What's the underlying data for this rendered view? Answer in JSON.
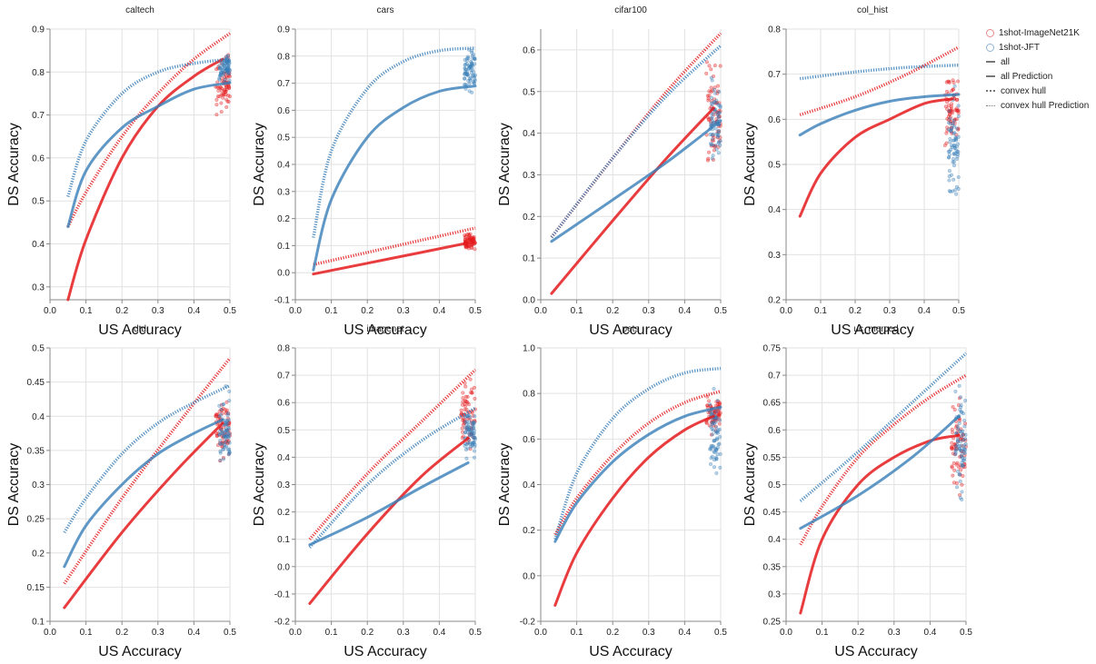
{
  "legend": {
    "colors": [
      {
        "label": "1shot-ImageNet21K",
        "color": "#e41a1c"
      },
      {
        "label": "1shot-JFT",
        "color": "#377eb8"
      }
    ],
    "styles": [
      {
        "label": "all",
        "dash": "solid"
      },
      {
        "label": "all Prediction",
        "dash": "dashed"
      },
      {
        "label": "convex hull",
        "dash": "dotted"
      },
      {
        "label": "convex hull Prediction",
        "dash": "dotted"
      }
    ]
  },
  "chart_data": [
    {
      "type": "line",
      "title": "caltech",
      "xlabel": "US Accuracy",
      "ylabel": "DS Accuracy",
      "xlim": [
        0.0,
        0.5
      ],
      "ylim": [
        0.27,
        0.9
      ],
      "yticks": [
        0.3,
        0.4,
        0.5,
        0.6,
        0.7,
        0.8,
        0.9
      ],
      "series": [
        {
          "group": "1shot-ImageNet21K",
          "style": "all",
          "color": "#e41a1c",
          "x": [
            0.05,
            0.1,
            0.2,
            0.3,
            0.4,
            0.48
          ],
          "y": [
            0.27,
            0.41,
            0.6,
            0.72,
            0.79,
            0.83
          ]
        },
        {
          "group": "1shot-ImageNet21K",
          "style": "convex hull",
          "color": "#e41a1c",
          "x": [
            0.05,
            0.1,
            0.2,
            0.3,
            0.4,
            0.5
          ],
          "y": [
            0.44,
            0.52,
            0.65,
            0.75,
            0.83,
            0.89
          ]
        },
        {
          "group": "1shot-JFT",
          "style": "all",
          "color": "#377eb8",
          "x": [
            0.05,
            0.1,
            0.2,
            0.3,
            0.4,
            0.5
          ],
          "y": [
            0.44,
            0.57,
            0.67,
            0.72,
            0.76,
            0.775
          ]
        },
        {
          "group": "1shot-JFT",
          "style": "convex hull",
          "color": "#377eb8",
          "x": [
            0.05,
            0.1,
            0.2,
            0.3,
            0.4,
            0.5
          ],
          "y": [
            0.51,
            0.64,
            0.75,
            0.8,
            0.82,
            0.83
          ]
        }
      ],
      "scatter": [
        {
          "group": "1shot-ImageNet21K",
          "color": "#e41a1c",
          "x_range": [
            0.46,
            0.5
          ],
          "y_range": [
            0.69,
            0.85
          ]
        },
        {
          "group": "1shot-JFT",
          "color": "#377eb8",
          "x_range": [
            0.47,
            0.5
          ],
          "y_range": [
            0.77,
            0.85
          ]
        }
      ]
    },
    {
      "type": "line",
      "title": "cars",
      "xlabel": "US Accuracy",
      "ylabel": "DS Accuracy",
      "xlim": [
        0.0,
        0.5
      ],
      "ylim": [
        -0.1,
        0.9
      ],
      "yticks": [
        -0.1,
        0.0,
        0.1,
        0.2,
        0.3,
        0.4,
        0.5,
        0.6,
        0.7,
        0.8,
        0.9
      ],
      "series": [
        {
          "group": "1shot-ImageNet21K",
          "style": "all",
          "color": "#e41a1c",
          "x": [
            0.05,
            0.2,
            0.35,
            0.48
          ],
          "y": [
            -0.005,
            0.035,
            0.075,
            0.11
          ]
        },
        {
          "group": "1shot-ImageNet21K",
          "style": "convex hull",
          "color": "#e41a1c",
          "x": [
            0.05,
            0.2,
            0.35,
            0.5
          ],
          "y": [
            0.03,
            0.075,
            0.12,
            0.165
          ]
        },
        {
          "group": "1shot-JFT",
          "style": "all",
          "color": "#377eb8",
          "x": [
            0.05,
            0.1,
            0.2,
            0.3,
            0.4,
            0.5
          ],
          "y": [
            0.01,
            0.27,
            0.5,
            0.61,
            0.67,
            0.69
          ]
        },
        {
          "group": "1shot-JFT",
          "style": "convex hull",
          "color": "#377eb8",
          "x": [
            0.05,
            0.1,
            0.2,
            0.3,
            0.4,
            0.5
          ],
          "y": [
            0.13,
            0.45,
            0.68,
            0.78,
            0.82,
            0.83
          ]
        }
      ],
      "scatter": [
        {
          "group": "1shot-ImageNet21K",
          "color": "#e41a1c",
          "x_range": [
            0.47,
            0.5
          ],
          "y_range": [
            0.08,
            0.15
          ]
        },
        {
          "group": "1shot-JFT",
          "color": "#377eb8",
          "x_range": [
            0.47,
            0.5
          ],
          "y_range": [
            0.65,
            0.84
          ]
        }
      ]
    },
    {
      "type": "line",
      "title": "cifar100",
      "xlabel": "US Accuracy",
      "ylabel": "DS Accuracy",
      "xlim": [
        0.0,
        0.5
      ],
      "ylim": [
        0.0,
        0.65
      ],
      "yticks": [
        0.0,
        0.1,
        0.2,
        0.3,
        0.4,
        0.5,
        0.6
      ],
      "series": [
        {
          "group": "1shot-ImageNet21K",
          "style": "all",
          "color": "#e41a1c",
          "x": [
            0.03,
            0.2,
            0.35,
            0.48
          ],
          "y": [
            0.015,
            0.19,
            0.34,
            0.46
          ]
        },
        {
          "group": "1shot-ImageNet21K",
          "style": "convex hull",
          "color": "#e41a1c",
          "x": [
            0.03,
            0.2,
            0.35,
            0.5
          ],
          "y": [
            0.15,
            0.34,
            0.5,
            0.64
          ]
        },
        {
          "group": "1shot-JFT",
          "style": "all",
          "color": "#377eb8",
          "x": [
            0.03,
            0.2,
            0.35,
            0.5
          ],
          "y": [
            0.14,
            0.24,
            0.33,
            0.43
          ]
        },
        {
          "group": "1shot-JFT",
          "style": "convex hull",
          "color": "#377eb8",
          "x": [
            0.03,
            0.2,
            0.35,
            0.5
          ],
          "y": [
            0.15,
            0.34,
            0.49,
            0.61
          ]
        }
      ],
      "scatter": [
        {
          "group": "1shot-ImageNet21K",
          "color": "#e41a1c",
          "x_range": [
            0.46,
            0.5
          ],
          "y_range": [
            0.28,
            0.6
          ]
        },
        {
          "group": "1shot-JFT",
          "color": "#377eb8",
          "x_range": [
            0.47,
            0.5
          ],
          "y_range": [
            0.3,
            0.55
          ]
        }
      ]
    },
    {
      "type": "line",
      "title": "col_hist",
      "xlabel": "US Accuracy",
      "ylabel": "DS Accuracy",
      "xlim": [
        0.0,
        0.5
      ],
      "ylim": [
        0.2,
        0.8
      ],
      "yticks": [
        0.2,
        0.3,
        0.4,
        0.5,
        0.6,
        0.7,
        0.8
      ],
      "series": [
        {
          "group": "1shot-ImageNet21K",
          "style": "all",
          "color": "#e41a1c",
          "x": [
            0.04,
            0.1,
            0.2,
            0.3,
            0.4,
            0.48
          ],
          "y": [
            0.385,
            0.48,
            0.56,
            0.6,
            0.635,
            0.645
          ]
        },
        {
          "group": "1shot-ImageNet21K",
          "style": "convex hull",
          "color": "#e41a1c",
          "x": [
            0.04,
            0.2,
            0.35,
            0.5
          ],
          "y": [
            0.61,
            0.65,
            0.7,
            0.76
          ]
        },
        {
          "group": "1shot-JFT",
          "style": "all",
          "color": "#377eb8",
          "x": [
            0.04,
            0.1,
            0.2,
            0.3,
            0.4,
            0.5
          ],
          "y": [
            0.565,
            0.59,
            0.62,
            0.64,
            0.65,
            0.655
          ]
        },
        {
          "group": "1shot-JFT",
          "style": "convex hull",
          "color": "#377eb8",
          "x": [
            0.04,
            0.2,
            0.35,
            0.5
          ],
          "y": [
            0.69,
            0.705,
            0.715,
            0.72
          ]
        }
      ],
      "scatter": [
        {
          "group": "1shot-ImageNet21K",
          "color": "#e41a1c",
          "x_range": [
            0.46,
            0.5
          ],
          "y_range": [
            0.5,
            0.73
          ]
        },
        {
          "group": "1shot-JFT",
          "color": "#377eb8",
          "x_range": [
            0.47,
            0.5
          ],
          "y_range": [
            0.39,
            0.71
          ]
        }
      ]
    },
    {
      "type": "line",
      "title": "dtd",
      "xlabel": "US Accuracy",
      "ylabel": "DS Accuracy",
      "xlim": [
        0.0,
        0.5
      ],
      "ylim": [
        0.1,
        0.5
      ],
      "yticks": [
        0.1,
        0.15,
        0.2,
        0.25,
        0.3,
        0.35,
        0.4,
        0.45,
        0.5
      ],
      "series": [
        {
          "group": "1shot-ImageNet21K",
          "style": "all",
          "color": "#e41a1c",
          "x": [
            0.04,
            0.2,
            0.35,
            0.48
          ],
          "y": [
            0.12,
            0.23,
            0.32,
            0.39
          ]
        },
        {
          "group": "1shot-ImageNet21K",
          "style": "convex hull",
          "color": "#e41a1c",
          "x": [
            0.04,
            0.2,
            0.35,
            0.5
          ],
          "y": [
            0.155,
            0.28,
            0.385,
            0.485
          ]
        },
        {
          "group": "1shot-JFT",
          "style": "all",
          "color": "#377eb8",
          "x": [
            0.04,
            0.1,
            0.2,
            0.3,
            0.4,
            0.48
          ],
          "y": [
            0.18,
            0.24,
            0.3,
            0.345,
            0.375,
            0.395
          ]
        },
        {
          "group": "1shot-JFT",
          "style": "convex hull",
          "color": "#377eb8",
          "x": [
            0.04,
            0.1,
            0.2,
            0.3,
            0.4,
            0.5
          ],
          "y": [
            0.23,
            0.28,
            0.345,
            0.39,
            0.42,
            0.445
          ]
        }
      ],
      "scatter": [
        {
          "group": "1shot-ImageNet21K",
          "color": "#e41a1c",
          "x_range": [
            0.46,
            0.5
          ],
          "y_range": [
            0.32,
            0.44
          ]
        },
        {
          "group": "1shot-JFT",
          "color": "#377eb8",
          "x_range": [
            0.47,
            0.5
          ],
          "y_range": [
            0.31,
            0.45
          ]
        }
      ]
    },
    {
      "type": "line",
      "title": "imagenet",
      "xlabel": "US Accuracy",
      "ylabel": "DS Accuracy",
      "xlim": [
        0.0,
        0.5
      ],
      "ylim": [
        -0.2,
        0.8
      ],
      "yticks": [
        -0.2,
        -0.1,
        0.0,
        0.1,
        0.2,
        0.3,
        0.4,
        0.5,
        0.6,
        0.7,
        0.8
      ],
      "series": [
        {
          "group": "1shot-ImageNet21K",
          "style": "all",
          "color": "#e41a1c",
          "x": [
            0.04,
            0.2,
            0.35,
            0.48
          ],
          "y": [
            -0.135,
            0.12,
            0.33,
            0.47
          ]
        },
        {
          "group": "1shot-ImageNet21K",
          "style": "convex hull",
          "color": "#e41a1c",
          "x": [
            0.04,
            0.2,
            0.35,
            0.5
          ],
          "y": [
            0.1,
            0.34,
            0.53,
            0.72
          ]
        },
        {
          "group": "1shot-JFT",
          "style": "all",
          "color": "#377eb8",
          "x": [
            0.04,
            0.2,
            0.35,
            0.48
          ],
          "y": [
            0.08,
            0.18,
            0.29,
            0.38
          ]
        },
        {
          "group": "1shot-JFT",
          "style": "convex hull",
          "color": "#377eb8",
          "x": [
            0.04,
            0.2,
            0.35,
            0.5
          ],
          "y": [
            0.07,
            0.3,
            0.46,
            0.58
          ]
        }
      ],
      "scatter": [
        {
          "group": "1shot-ImageNet21K",
          "color": "#e41a1c",
          "x_range": [
            0.46,
            0.5
          ],
          "y_range": [
            0.4,
            0.72
          ]
        },
        {
          "group": "1shot-JFT",
          "color": "#377eb8",
          "x_range": [
            0.47,
            0.5
          ],
          "y_range": [
            0.38,
            0.6
          ]
        }
      ]
    },
    {
      "type": "line",
      "title": "pets",
      "xlabel": "US Accuracy",
      "ylabel": "DS Accuracy",
      "xlim": [
        0.0,
        0.5
      ],
      "ylim": [
        -0.2,
        1.0
      ],
      "yticks": [
        -0.2,
        0.0,
        0.2,
        0.4,
        0.6,
        0.8,
        1.0
      ],
      "series": [
        {
          "group": "1shot-ImageNet21K",
          "style": "all",
          "color": "#e41a1c",
          "x": [
            0.04,
            0.1,
            0.2,
            0.3,
            0.4,
            0.48
          ],
          "y": [
            -0.13,
            0.1,
            0.34,
            0.52,
            0.64,
            0.7
          ]
        },
        {
          "group": "1shot-ImageNet21K",
          "style": "convex hull",
          "color": "#e41a1c",
          "x": [
            0.04,
            0.1,
            0.2,
            0.3,
            0.4,
            0.5
          ],
          "y": [
            0.18,
            0.34,
            0.53,
            0.67,
            0.76,
            0.81
          ]
        },
        {
          "group": "1shot-JFT",
          "style": "all",
          "color": "#377eb8",
          "x": [
            0.04,
            0.1,
            0.2,
            0.3,
            0.4,
            0.5
          ],
          "y": [
            0.15,
            0.32,
            0.5,
            0.62,
            0.7,
            0.74
          ]
        },
        {
          "group": "1shot-JFT",
          "style": "convex hull",
          "color": "#377eb8",
          "x": [
            0.04,
            0.1,
            0.2,
            0.3,
            0.4,
            0.5
          ],
          "y": [
            0.16,
            0.45,
            0.69,
            0.82,
            0.89,
            0.91
          ]
        }
      ],
      "scatter": [
        {
          "group": "1shot-ImageNet21K",
          "color": "#e41a1c",
          "x_range": [
            0.46,
            0.5
          ],
          "y_range": [
            0.6,
            0.82
          ]
        },
        {
          "group": "1shot-JFT",
          "color": "#377eb8",
          "x_range": [
            0.47,
            0.5
          ],
          "y_range": [
            0.39,
            0.85
          ]
        }
      ]
    },
    {
      "type": "line",
      "title": "uc_merced",
      "xlabel": "US Accuracy",
      "ylabel": "DS Accuracy",
      "xlim": [
        0.0,
        0.5
      ],
      "ylim": [
        0.25,
        0.75
      ],
      "yticks": [
        0.25,
        0.3,
        0.35,
        0.4,
        0.45,
        0.5,
        0.55,
        0.6,
        0.65,
        0.7,
        0.75
      ],
      "series": [
        {
          "group": "1shot-ImageNet21K",
          "style": "all",
          "color": "#e41a1c",
          "x": [
            0.04,
            0.1,
            0.2,
            0.3,
            0.4,
            0.48
          ],
          "y": [
            0.265,
            0.4,
            0.5,
            0.55,
            0.58,
            0.59
          ]
        },
        {
          "group": "1shot-ImageNet21K",
          "style": "convex hull",
          "color": "#e41a1c",
          "x": [
            0.04,
            0.1,
            0.2,
            0.3,
            0.4,
            0.5
          ],
          "y": [
            0.39,
            0.46,
            0.55,
            0.61,
            0.66,
            0.7
          ]
        },
        {
          "group": "1shot-JFT",
          "style": "all",
          "color": "#377eb8",
          "x": [
            0.04,
            0.2,
            0.35,
            0.48
          ],
          "y": [
            0.42,
            0.48,
            0.55,
            0.625
          ]
        },
        {
          "group": "1shot-JFT",
          "style": "convex hull",
          "color": "#377eb8",
          "x": [
            0.04,
            0.2,
            0.35,
            0.5
          ],
          "y": [
            0.47,
            0.56,
            0.65,
            0.74
          ]
        }
      ],
      "scatter": [
        {
          "group": "1shot-ImageNet21K",
          "color": "#e41a1c",
          "x_range": [
            0.46,
            0.5
          ],
          "y_range": [
            0.45,
            0.68
          ]
        },
        {
          "group": "1shot-JFT",
          "color": "#377eb8",
          "x_range": [
            0.47,
            0.5
          ],
          "y_range": [
            0.43,
            0.71
          ]
        }
      ]
    }
  ]
}
